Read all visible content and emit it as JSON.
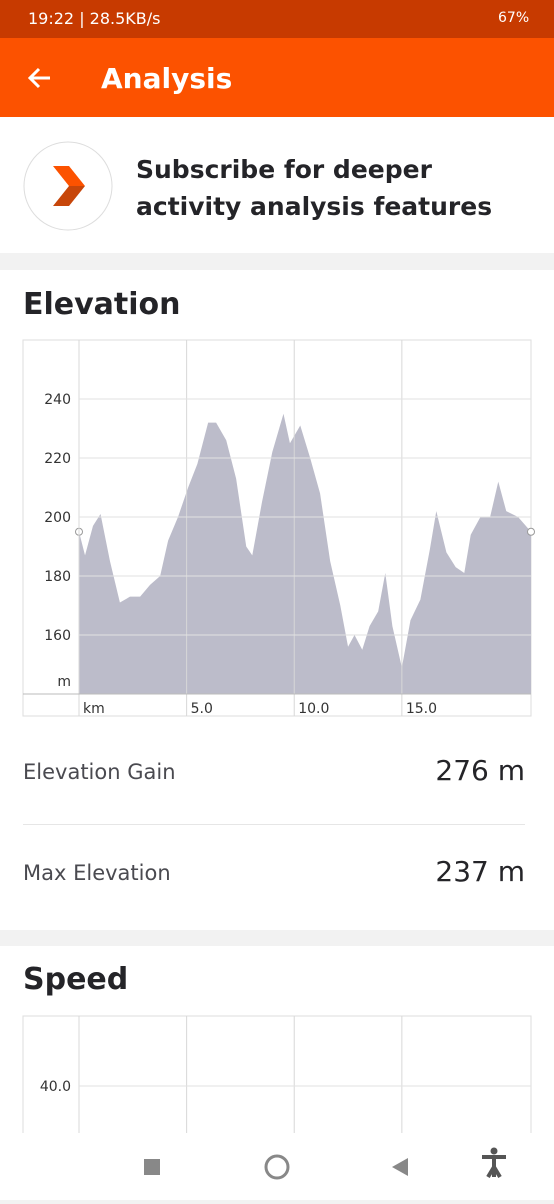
{
  "status_bar": {
    "left": "19:22 | 28.5KB/s",
    "battery": "67%"
  },
  "header": {
    "title": "Analysis"
  },
  "banner": {
    "text": "Subscribe for deeper activity analysis features"
  },
  "elevation": {
    "heading": "Elevation",
    "stats": [
      {
        "label": "Elevation Gain",
        "value": "276 m"
      },
      {
        "label": "Max Elevation",
        "value": "237 m"
      }
    ]
  },
  "speed": {
    "heading": "Speed"
  },
  "chart_data": [
    {
      "type": "area",
      "y_unit": "m",
      "color": "#bcbcca",
      "x": [
        0,
        0.28,
        0.65,
        1.0,
        1.44,
        1.9,
        2.37,
        2.84,
        3.3,
        3.77,
        4.14,
        4.6,
        5.07,
        5.5,
        6.0,
        6.37,
        6.84,
        7.3,
        7.77,
        8.05,
        8.5,
        8.98,
        9.5,
        9.8,
        10.28,
        10.74,
        11.2,
        11.67,
        12.14,
        12.5,
        12.8,
        13.16,
        13.5,
        13.9,
        14.23,
        14.56,
        15.0,
        15.4,
        15.86,
        16.3,
        16.6,
        17.07,
        17.5,
        17.9,
        18.2,
        18.65,
        19.1,
        19.48,
        19.85,
        20.4,
        21
      ],
      "values": [
        195,
        187,
        197,
        201,
        185,
        171,
        173,
        173,
        177,
        180,
        192,
        200,
        210,
        218,
        232,
        232,
        226,
        213,
        190,
        187,
        205,
        222,
        235,
        225,
        231,
        220,
        208,
        185,
        170,
        156,
        160,
        155,
        163,
        168,
        181,
        163,
        149,
        165,
        172,
        189,
        202,
        188,
        183,
        181,
        194,
        200,
        200,
        212,
        202,
        200,
        195
      ],
      "xlim": [
        0,
        21
      ],
      "xticks": [
        {
          "value": 0,
          "label": "km"
        },
        {
          "value": 5,
          "label": "5.0"
        },
        {
          "value": 10,
          "label": "10.0"
        },
        {
          "value": 15,
          "label": "15.0"
        }
      ],
      "ylim": [
        140,
        260
      ],
      "yticks": [
        160,
        180,
        200,
        220,
        240
      ],
      "grid": true
    },
    {
      "type": "area",
      "xlim": [
        0,
        21
      ],
      "xticks": [
        {
          "value": 0,
          "label": ""
        },
        {
          "value": 5,
          "label": ""
        },
        {
          "value": 10,
          "label": ""
        },
        {
          "value": 15,
          "label": ""
        }
      ],
      "yticks": [
        {
          "value": 40,
          "label": "40.0"
        }
      ],
      "grid": true
    }
  ]
}
